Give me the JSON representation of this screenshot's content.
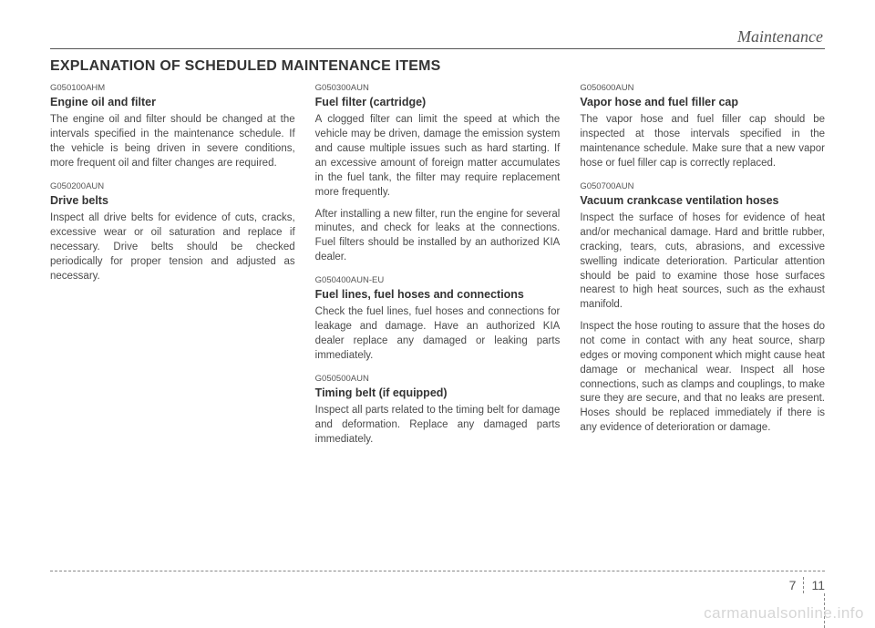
{
  "header": {
    "section_title": "Maintenance"
  },
  "main_title": "EXPLANATION OF SCHEDULED MAINTENANCE ITEMS",
  "col1": {
    "item1": {
      "code": "G050100AHM",
      "heading": "Engine oil and filter",
      "body": "The engine oil and filter should be changed at the intervals specified in the maintenance schedule. If the vehicle is being driven in severe conditions, more frequent oil and filter changes are required."
    },
    "item2": {
      "code": "G050200AUN",
      "heading": "Drive belts",
      "body": "Inspect all drive belts for evidence of cuts, cracks, excessive wear or oil saturation and replace if necessary. Drive belts should be checked periodically for proper tension and adjusted as necessary."
    }
  },
  "col2": {
    "item1": {
      "code": "G050300AUN",
      "heading": "Fuel filter (cartridge)",
      "body1": "A clogged filter can limit the speed at which the vehicle may be driven, damage the emission system and cause multiple issues such as hard starting. If an excessive amount of foreign matter accumulates in the fuel tank, the filter may require replacement more frequently.",
      "body2": "After installing a new filter, run the engine for several minutes, and check for leaks at the connections. Fuel filters should be installed by an authorized KIA dealer."
    },
    "item2": {
      "code": "G050400AUN-EU",
      "heading": "Fuel lines, fuel hoses and connections",
      "body": "Check the fuel lines, fuel hoses and connections for leakage and damage. Have an authorized KIA dealer replace any damaged or leaking parts immediately."
    },
    "item3": {
      "code": "G050500AUN",
      "heading": "Timing belt (if equipped)",
      "body": "Inspect all parts related to the timing belt for damage and deformation. Replace any damaged parts immediately."
    }
  },
  "col3": {
    "item1": {
      "code": "G050600AUN",
      "heading": "Vapor hose and fuel filler cap",
      "body": "The vapor hose and fuel filler cap should be inspected at those intervals specified in the maintenance schedule. Make sure that a new vapor hose or fuel filler cap is correctly replaced."
    },
    "item2": {
      "code": "G050700AUN",
      "heading": "Vacuum crankcase ventilation hoses",
      "body1": "Inspect the surface of hoses for evidence of heat and/or mechanical damage. Hard and brittle rubber, cracking, tears, cuts, abrasions, and excessive swelling indicate deterioration. Particular attention should be paid to examine those hose surfaces nearest to high heat sources, such as the exhaust manifold.",
      "body2": "Inspect the hose routing to assure that the hoses do not come in contact with any heat source, sharp edges or moving component which might cause heat damage or mechanical wear. Inspect all hose connections, such as clamps and couplings, to make sure they are secure, and that no leaks are present. Hoses should be replaced immediately if there is any evidence of deterioration or damage."
    }
  },
  "footer": {
    "page_left": "7",
    "page_right": "11"
  },
  "watermark": "carmanualsonline.info"
}
